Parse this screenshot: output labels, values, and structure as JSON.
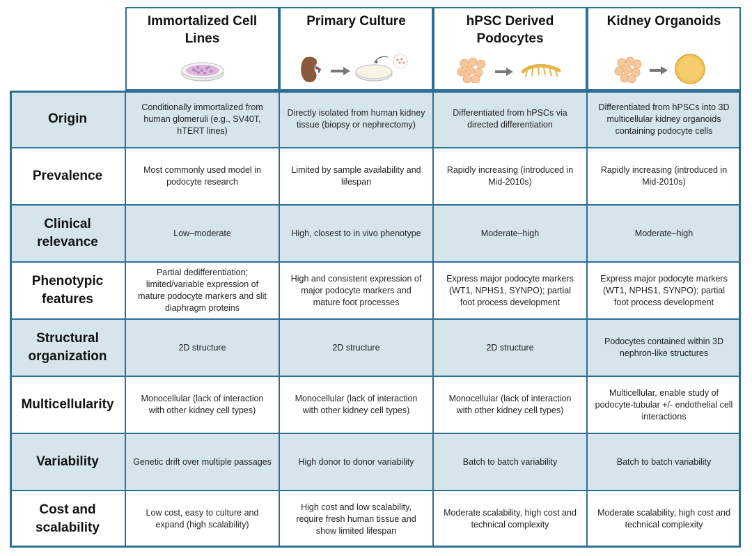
{
  "columns": [
    {
      "title": "Immortalized Cell Lines",
      "art": "petri-dish-cells"
    },
    {
      "title": "Primary Culture",
      "art": "kidney-to-dish"
    },
    {
      "title": "hPSC Derived Podocytes",
      "art": "stem-cells-to-podocyte"
    },
    {
      "title": "Kidney Organoids",
      "art": "stem-cells-to-organoid"
    }
  ],
  "rows": [
    {
      "label": "Origin",
      "cells": [
        "Conditionally immortalized from human glomeruli (e.g., SV40T, hTERT lines)",
        "Directly isolated from human kidney tissue (biopsy or nephrectomy)",
        "Differentiated from hPSCs via directed differentiation",
        "Differentiated from hPSCs into 3D multicellular kidney organoids containing podocyte cells"
      ]
    },
    {
      "label": "Prevalence",
      "cells": [
        "Most commonly used model in podocyte research",
        "Limited by sample availability and lifespan",
        "Rapidly increasing (introduced in Mid-2010s)",
        "Rapidly increasing (introduced in Mid-2010s)"
      ]
    },
    {
      "label": "Clinical relevance",
      "cells": [
        "Low–moderate",
        "High, closest to in vivo phenotype",
        "Moderate–high",
        "Moderate–high"
      ]
    },
    {
      "label": "Phenotypic features",
      "cells": [
        "Partial dedifferentiation; limited/variable expression of mature podocyte markers and slit diaphragm proteins",
        "High and consistent expression of major podocyte markers and mature foot processes",
        "Express major podocyte markers (WT1, NPHS1, SYNPO); partial foot process development",
        "Express major podocyte markers (WT1, NPHS1, SYNPO); partial foot process development"
      ]
    },
    {
      "label": "Structural organization",
      "cells": [
        "2D structure",
        "2D structure",
        "2D structure",
        "Podocytes contained within 3D nephron-like structures"
      ]
    },
    {
      "label": "Multicellularity",
      "cells": [
        "Monocellular (lack of interaction with other kidney cell types)",
        "Monocellular (lack of interaction with other kidney cell types)",
        "Monocellular (lack of interaction with other kidney cell types)",
        "Multicellular, enable study of podocyte-tubular +/- endothelial cell interactions"
      ]
    },
    {
      "label": "Variability",
      "cells": [
        "Genetic drift over multiple passages",
        "High donor to donor variability",
        "Batch to batch variability",
        "Batch to batch variability"
      ]
    },
    {
      "label": "Cost and scalability",
      "cells": [
        "Low cost, easy to culture and expand (high scalability)",
        "High cost and low scalability, require fresh human tissue and show limited lifespan",
        "Moderate scalability, high cost and technical complexity",
        "Moderate scalability, high cost and technical complexity"
      ]
    }
  ],
  "colors": {
    "border": "#2e6f96",
    "shade": "#d6e4ec",
    "cell_pink": "#e8c9df",
    "cell_orange": "#f6c79a",
    "organoid": "#f2c35a"
  }
}
